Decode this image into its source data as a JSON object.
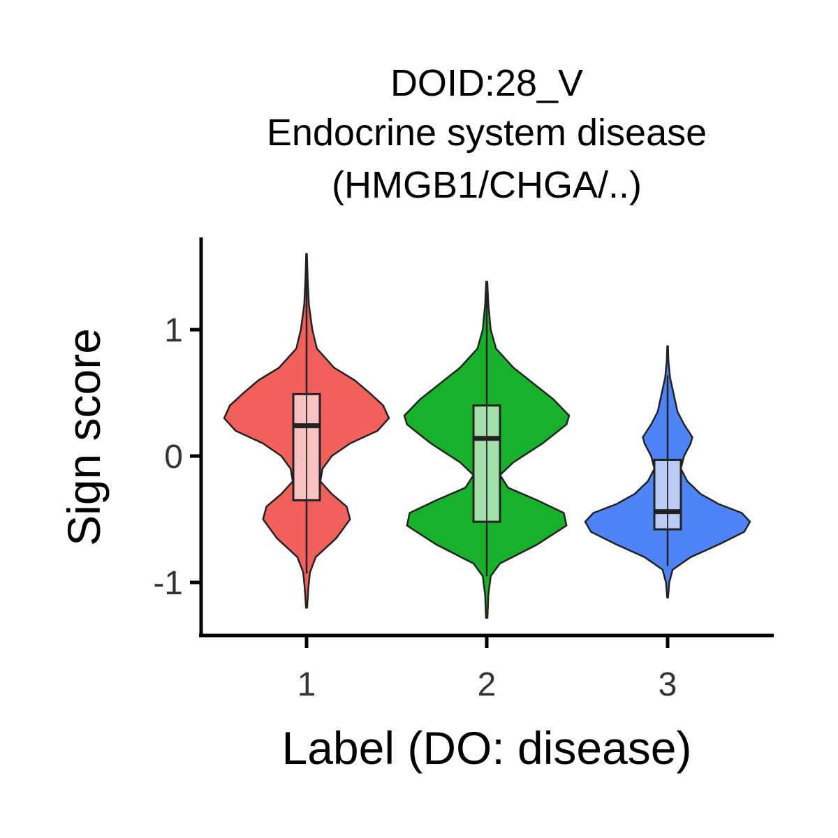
{
  "chart_data": {
    "type": "violin",
    "title_lines": [
      "DOID:28_V",
      "Endocrine system disease",
      "(HMGB1/CHGA/..)"
    ],
    "xlabel": "Label (DO: disease)",
    "ylabel": "Sign score",
    "ylim": [
      -1.42,
      1.73
    ],
    "yticks": [
      -1,
      0,
      1
    ],
    "ytick_labels": [
      "-1",
      "0",
      "1"
    ],
    "categories": [
      "1",
      "2",
      "3"
    ],
    "grid": false,
    "legend": "none",
    "series": [
      {
        "category": "1",
        "color": "#F2605B",
        "box_color": "#F9C1C0",
        "min": -1.2,
        "max": 1.6,
        "box": {
          "q1": -0.35,
          "median": 0.24,
          "q3": 0.49,
          "whisker_low": -0.93,
          "whisker_high": 1.6
        },
        "density": [
          [
            -1.2,
            0.005
          ],
          [
            -1.05,
            0.015
          ],
          [
            -0.92,
            0.03
          ],
          [
            -0.8,
            0.08
          ],
          [
            -0.65,
            0.26
          ],
          [
            -0.5,
            0.38
          ],
          [
            -0.4,
            0.35
          ],
          [
            -0.3,
            0.22
          ],
          [
            -0.2,
            0.12
          ],
          [
            -0.1,
            0.14
          ],
          [
            0,
            0.22
          ],
          [
            0.1,
            0.38
          ],
          [
            0.2,
            0.62
          ],
          [
            0.3,
            0.72
          ],
          [
            0.4,
            0.67
          ],
          [
            0.5,
            0.55
          ],
          [
            0.6,
            0.42
          ],
          [
            0.7,
            0.24
          ],
          [
            0.85,
            0.09
          ],
          [
            1.0,
            0.05
          ],
          [
            1.2,
            0.02
          ],
          [
            1.4,
            0.01
          ],
          [
            1.6,
            0.003
          ]
        ]
      },
      {
        "category": "2",
        "color": "#17B12B",
        "box_color": "#A3E0A9",
        "min": -1.28,
        "max": 1.38,
        "box": {
          "q1": -0.52,
          "median": 0.14,
          "q3": 0.4,
          "whisker_low": -0.95,
          "whisker_high": 1.38
        },
        "density": [
          [
            -1.28,
            0.005
          ],
          [
            -1.1,
            0.012
          ],
          [
            -0.95,
            0.03
          ],
          [
            -0.85,
            0.1
          ],
          [
            -0.7,
            0.38
          ],
          [
            -0.55,
            0.6
          ],
          [
            -0.45,
            0.58
          ],
          [
            -0.35,
            0.38
          ],
          [
            -0.25,
            0.16
          ],
          [
            -0.15,
            0.1
          ],
          [
            -0.05,
            0.2
          ],
          [
            0.1,
            0.42
          ],
          [
            0.25,
            0.6
          ],
          [
            0.32,
            0.62
          ],
          [
            0.45,
            0.5
          ],
          [
            0.55,
            0.38
          ],
          [
            0.7,
            0.2
          ],
          [
            0.85,
            0.07
          ],
          [
            1.0,
            0.03
          ],
          [
            1.2,
            0.012
          ],
          [
            1.38,
            0.004
          ]
        ]
      },
      {
        "category": "3",
        "color": "#4E84F8",
        "box_color": "#BBCCF8",
        "min": -1.12,
        "max": 0.87,
        "box": {
          "q1": -0.58,
          "median": -0.44,
          "q3": -0.03,
          "whisker_low": -0.87,
          "whisker_high": 0.64
        },
        "density": [
          [
            -1.12,
            0.005
          ],
          [
            -1.0,
            0.02
          ],
          [
            -0.9,
            0.06
          ],
          [
            -0.8,
            0.28
          ],
          [
            -0.7,
            0.62
          ],
          [
            -0.6,
            0.93
          ],
          [
            -0.52,
            1.0
          ],
          [
            -0.45,
            0.9
          ],
          [
            -0.38,
            0.62
          ],
          [
            -0.3,
            0.4
          ],
          [
            -0.2,
            0.24
          ],
          [
            -0.1,
            0.16
          ],
          [
            0.0,
            0.2
          ],
          [
            0.1,
            0.28
          ],
          [
            0.15,
            0.3
          ],
          [
            0.25,
            0.2
          ],
          [
            0.35,
            0.12
          ],
          [
            0.5,
            0.07
          ],
          [
            0.62,
            0.03
          ],
          [
            0.75,
            0.01
          ],
          [
            0.87,
            0.004
          ]
        ]
      }
    ]
  }
}
